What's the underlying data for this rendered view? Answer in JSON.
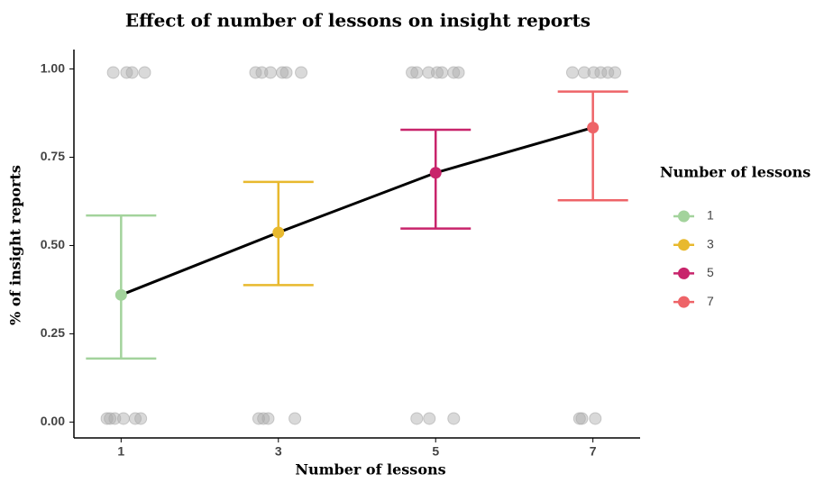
{
  "chart_data": {
    "type": "errorbar",
    "title": "Effect of number of lessons on insight reports",
    "xlabel": "Number of lessons",
    "ylabel": "% of insight reports",
    "legend_title": "Number of lessons",
    "x": [
      1,
      3,
      5,
      7
    ],
    "values": [
      0.36,
      0.537,
      0.706,
      0.834
    ],
    "lower": [
      0.18,
      0.388,
      0.548,
      0.628
    ],
    "upper": [
      0.585,
      0.68,
      0.828,
      0.936
    ],
    "colors": [
      "#a3d39c",
      "#e8b92e",
      "#c8246b",
      "#ee6468"
    ],
    "line_color": "#000000",
    "points": {
      "color": "#aaaaaa",
      "x": [
        0.9,
        1.07,
        1.14,
        1.3,
        0.82,
        0.86,
        0.92,
        1.03,
        1.18,
        1.25,
        2.71,
        2.79,
        2.9,
        3.05,
        3.1,
        3.29,
        2.75,
        2.81,
        2.87,
        3.21,
        4.7,
        4.76,
        4.91,
        5.02,
        5.08,
        5.23,
        5.29,
        4.76,
        4.92,
        5.23,
        6.74,
        6.89,
        7.01,
        7.1,
        7.19,
        7.28,
        6.83,
        6.86,
        7.03
      ],
      "y": [
        0.99,
        0.99,
        0.99,
        0.99,
        0.01,
        0.01,
        0.01,
        0.01,
        0.01,
        0.01,
        0.99,
        0.99,
        0.99,
        0.99,
        0.99,
        0.99,
        0.01,
        0.01,
        0.01,
        0.01,
        0.99,
        0.99,
        0.99,
        0.99,
        0.99,
        0.99,
        0.99,
        0.01,
        0.01,
        0.01,
        0.99,
        0.99,
        0.99,
        0.99,
        0.99,
        0.99,
        0.01,
        0.01,
        0.01
      ]
    },
    "xlim": [
      0.4,
      7.6
    ],
    "ylim": [
      -0.045,
      1.055
    ],
    "xticks": [
      1,
      3,
      5,
      7
    ],
    "yticks": [
      {
        "value": 0,
        "label": "0.00"
      },
      {
        "value": 0.25,
        "label": "0.25"
      },
      {
        "value": 0.5,
        "label": "0.50"
      },
      {
        "value": 0.75,
        "label": "0.75"
      },
      {
        "value": 1,
        "label": "1.00"
      }
    ],
    "grid": false,
    "legend_position": "right"
  }
}
